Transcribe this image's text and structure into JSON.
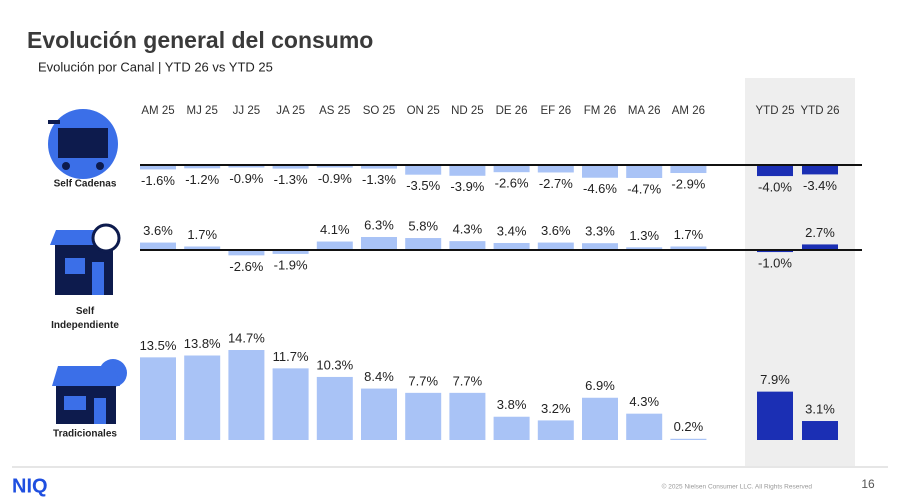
{
  "title": "Evolución general del consumo",
  "subtitle": "Evolución por Canal | YTD 26 vs YTD 25",
  "footer": {
    "logo": "NIQ",
    "copyright": "© 2025 Nielsen Consumer LLC. All Rights Reserved",
    "page": "16"
  },
  "chart_data": {
    "type": "bar",
    "categories": [
      "AM 25",
      "MJ 25",
      "JJ 25",
      "JA 25",
      "AS 25",
      "SO 25",
      "ON 25",
      "ND 25",
      "DE 26",
      "EF 26",
      "FM 26",
      "MA 26",
      "AM 26",
      "YTD 25",
      "YTD 26"
    ],
    "color": "#a9c3f6",
    "highlight_color": "#1b2fb4",
    "highlight_categories": [
      "YTD 25",
      "YTD 26"
    ],
    "series": [
      {
        "name": "Self Cadenas",
        "values": [
          -1.6,
          -1.2,
          -0.9,
          -1.3,
          -0.9,
          -1.3,
          -3.5,
          -3.9,
          -2.6,
          -2.7,
          -4.6,
          -4.7,
          -2.9,
          -4.0,
          -3.4
        ],
        "value_labels": [
          "-1.6%",
          "-1.2%",
          "-0.9%",
          "-1.3%",
          "-0.9%",
          "-1.3%",
          "-3.5%",
          "-3.9%",
          "-2.6%",
          "-2.7%",
          "-4.6%",
          "-4.7%",
          "-2.9%",
          "-4.0%",
          "-3.4%"
        ]
      },
      {
        "name": "Self Independiente",
        "values": [
          3.6,
          1.7,
          -2.6,
          -1.9,
          4.1,
          6.3,
          5.8,
          4.3,
          3.4,
          3.6,
          3.3,
          1.3,
          1.7,
          -1.0,
          2.7
        ],
        "value_labels": [
          "3.6%",
          "1.7%",
          "-2.6%",
          "-1.9%",
          "4.1%",
          "6.3%",
          "5.8%",
          "4.3%",
          "3.4%",
          "3.6%",
          "3.3%",
          "1.3%",
          "1.7%",
          "-1.0%",
          "2.7%"
        ]
      },
      {
        "name": "Tradicionales",
        "values": [
          13.5,
          13.8,
          14.7,
          11.7,
          10.3,
          8.4,
          7.7,
          7.7,
          3.8,
          3.2,
          6.9,
          4.3,
          0.2,
          7.9,
          3.1
        ],
        "value_labels": [
          "13.5%",
          "13.8%",
          "14.7%",
          "11.7%",
          "10.3%",
          "8.4%",
          "7.7%",
          "7.7%",
          "3.8%",
          "3.2%",
          "6.9%",
          "4.3%",
          "0.2%",
          "7.9%",
          "3.1%"
        ]
      }
    ]
  }
}
